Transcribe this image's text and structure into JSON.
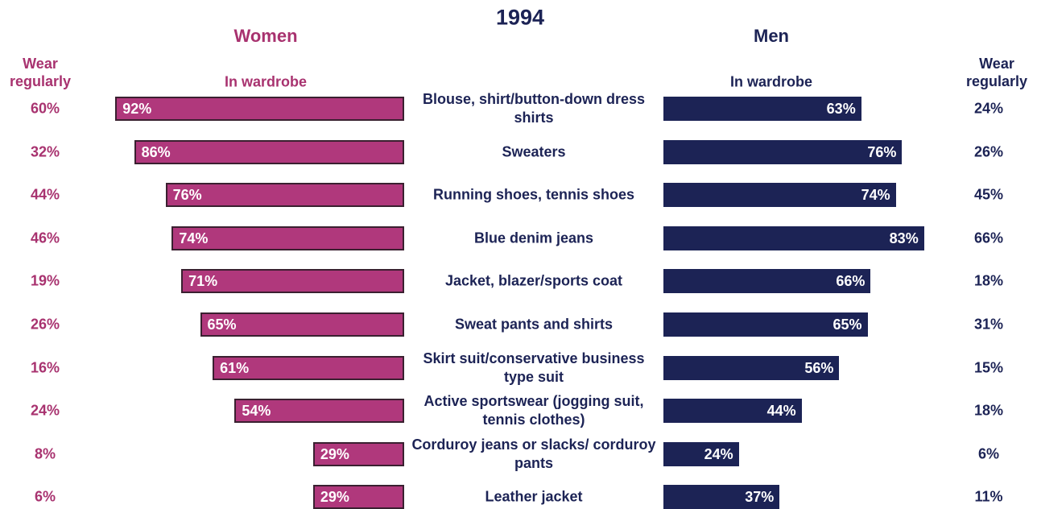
{
  "chart_data": {
    "type": "bar",
    "title": "1994",
    "categories": [
      "Blouse, shirt/button-down dress shirts",
      "Sweaters",
      "Running shoes, tennis shoes",
      "Blue denim jeans",
      "Jacket, blazer/sports coat",
      "Sweat pants and shirts",
      "Skirt suit/conservative business type suit",
      "Active sportswear (jogging suit, tennis clothes)",
      "Corduroy jeans or slacks/ corduroy pants",
      "Leather jacket"
    ],
    "xlim": [
      0,
      100
    ],
    "panels": [
      {
        "title": "Women",
        "color": "#b0387c",
        "text_color": "#a8326f",
        "series": [
          {
            "name": "In wardrobe",
            "values": [
              92,
              86,
              76,
              74,
              71,
              65,
              61,
              54,
              29,
              29
            ],
            "value_labels": [
              "92%",
              "86%",
              "76%",
              "74%",
              "71%",
              "65%",
              "61%",
              "54%",
              "29%",
              "29%"
            ]
          },
          {
            "name": "Wear regularly",
            "values": [
              60,
              32,
              44,
              46,
              19,
              26,
              16,
              24,
              8,
              6
            ],
            "value_labels": [
              "60%",
              "32%",
              "44%",
              "46%",
              "19%",
              "26%",
              "16%",
              "24%",
              "8%",
              "6%"
            ]
          }
        ]
      },
      {
        "title": "Men",
        "color": "#1c2355",
        "text_color": "#1c2355",
        "series": [
          {
            "name": "In wardrobe",
            "values": [
              63,
              76,
              74,
              83,
              66,
              65,
              56,
              44,
              24,
              37
            ],
            "value_labels": [
              "63%",
              "76%",
              "74%",
              "83%",
              "66%",
              "65%",
              "56%",
              "44%",
              "24%",
              "37%"
            ]
          },
          {
            "name": "Wear regularly",
            "values": [
              24,
              26,
              45,
              66,
              18,
              31,
              15,
              18,
              6,
              11
            ],
            "value_labels": [
              "24%",
              "26%",
              "45%",
              "66%",
              "18%",
              "31%",
              "15%",
              "18%",
              "6%",
              "11%"
            ]
          }
        ]
      }
    ]
  }
}
